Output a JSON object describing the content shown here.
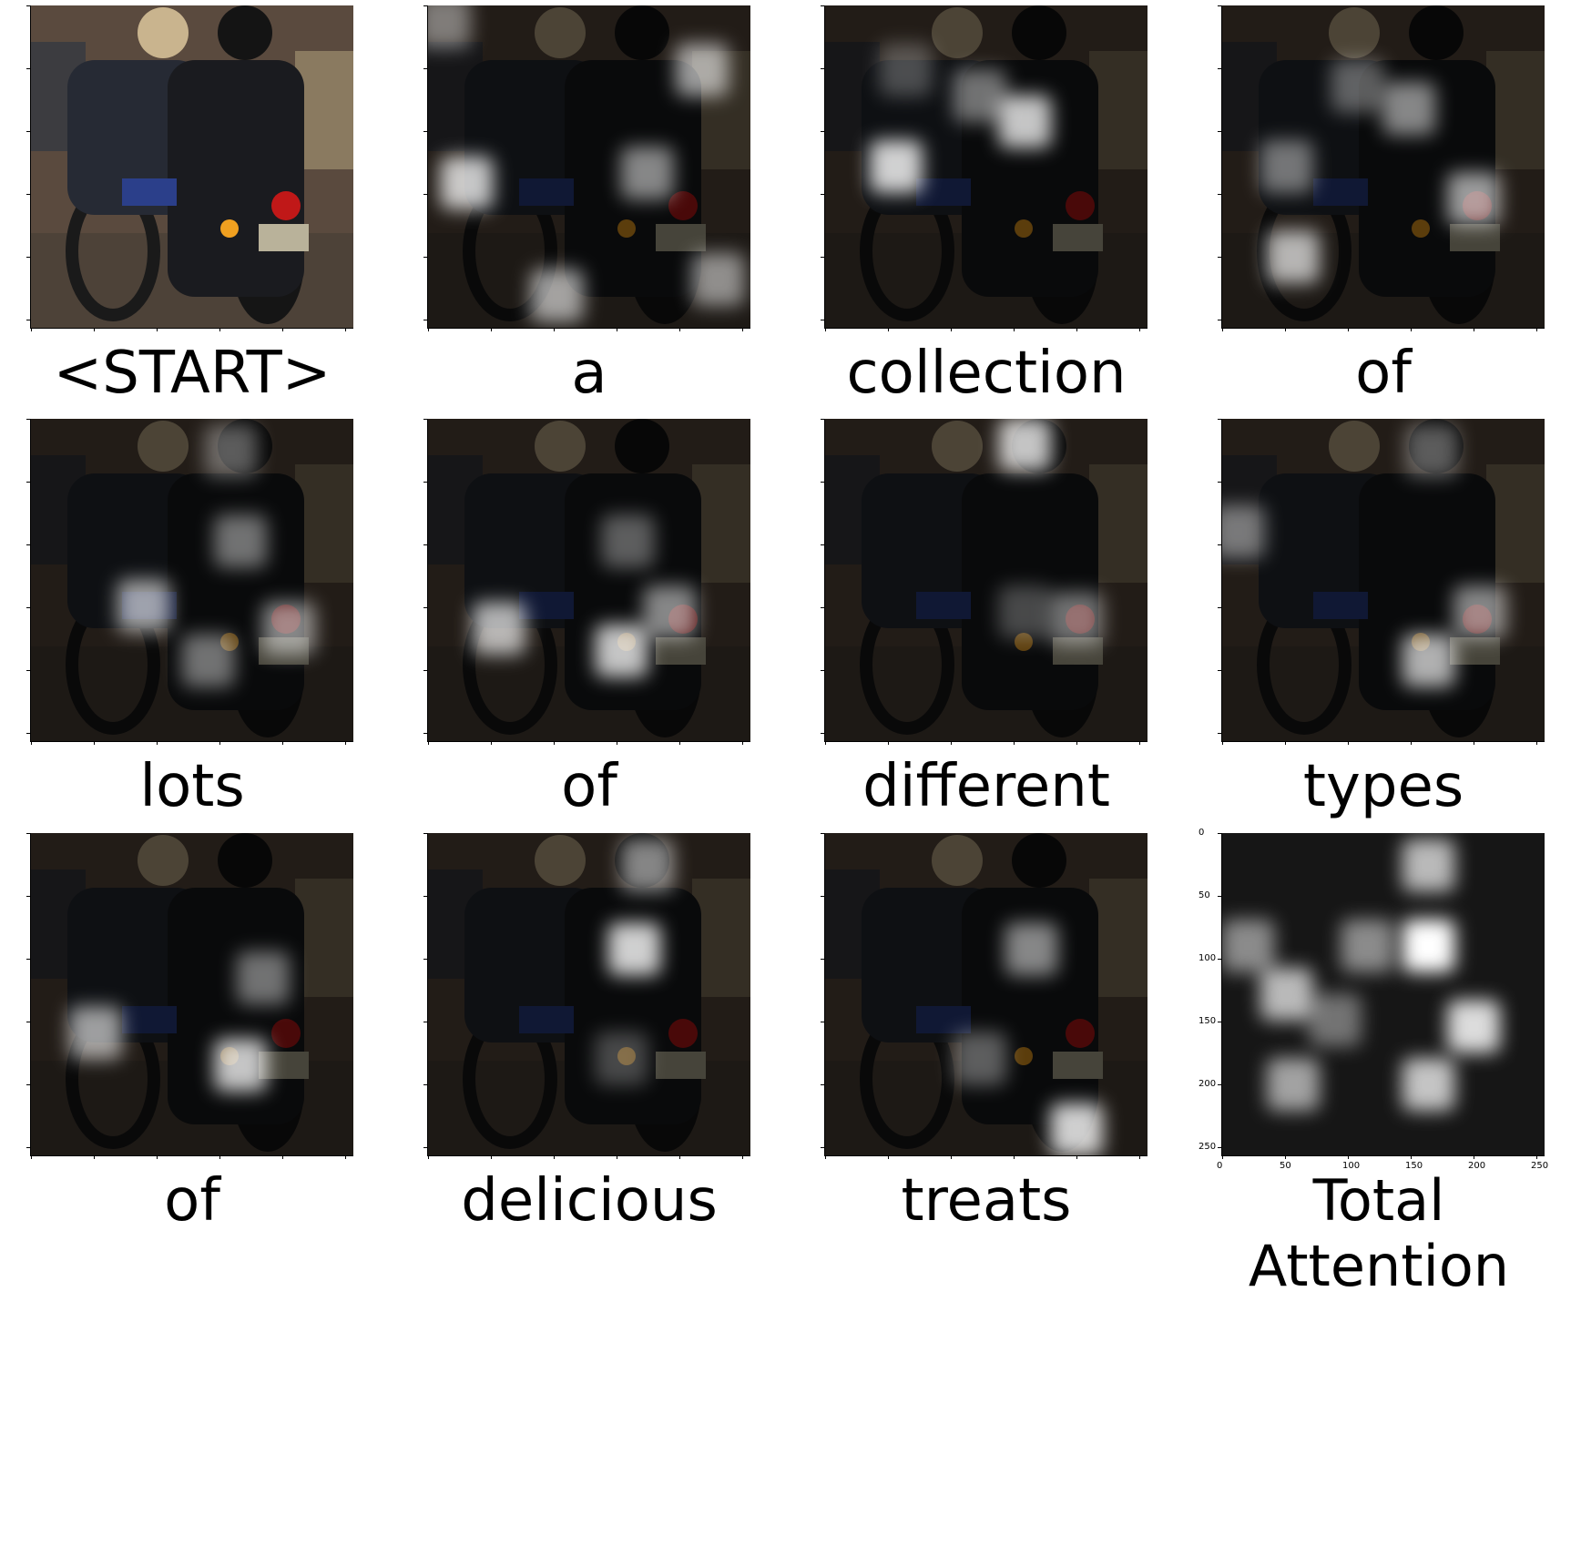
{
  "figure": {
    "panels": [
      {
        "caption": "<START>",
        "mode": "photo"
      },
      {
        "caption": "a",
        "mode": "attention",
        "spots": [
          [
            0.12,
            0.55,
            0.9
          ],
          [
            0.85,
            0.2,
            0.7
          ],
          [
            0.68,
            0.52,
            0.6
          ],
          [
            0.4,
            0.9,
            0.7
          ],
          [
            0.05,
            0.05,
            0.5
          ],
          [
            0.9,
            0.85,
            0.6
          ]
        ]
      },
      {
        "caption": "collection",
        "mode": "attention",
        "spots": [
          [
            0.22,
            0.5,
            0.95
          ],
          [
            0.62,
            0.36,
            0.9
          ],
          [
            0.48,
            0.28,
            0.5
          ],
          [
            0.25,
            0.2,
            0.3
          ]
        ]
      },
      {
        "caption": "of",
        "mode": "attention",
        "spots": [
          [
            0.58,
            0.32,
            0.6
          ],
          [
            0.78,
            0.6,
            0.7
          ],
          [
            0.22,
            0.78,
            0.8
          ],
          [
            0.2,
            0.5,
            0.5
          ],
          [
            0.42,
            0.25,
            0.4
          ]
        ]
      },
      {
        "caption": "lots",
        "mode": "attention",
        "spots": [
          [
            0.35,
            0.58,
            0.7
          ],
          [
            0.65,
            0.38,
            0.5
          ],
          [
            0.8,
            0.65,
            0.6
          ],
          [
            0.55,
            0.75,
            0.5
          ],
          [
            0.62,
            0.1,
            0.4
          ]
        ]
      },
      {
        "caption": "of",
        "mode": "attention",
        "spots": [
          [
            0.22,
            0.65,
            0.8
          ],
          [
            0.6,
            0.72,
            0.9
          ],
          [
            0.75,
            0.6,
            0.6
          ],
          [
            0.62,
            0.38,
            0.4
          ]
        ]
      },
      {
        "caption": "different",
        "mode": "attention",
        "spots": [
          [
            0.62,
            0.08,
            0.9
          ],
          [
            0.78,
            0.62,
            0.5
          ],
          [
            0.62,
            0.6,
            0.3
          ]
        ]
      },
      {
        "caption": "types",
        "mode": "attention",
        "spots": [
          [
            0.64,
            0.75,
            0.8
          ],
          [
            0.8,
            0.6,
            0.6
          ],
          [
            0.65,
            0.1,
            0.4
          ],
          [
            0.05,
            0.35,
            0.5
          ]
        ]
      },
      {
        "caption": "of",
        "mode": "attention",
        "spots": [
          [
            0.2,
            0.62,
            0.7
          ],
          [
            0.65,
            0.72,
            0.9
          ],
          [
            0.72,
            0.45,
            0.5
          ]
        ]
      },
      {
        "caption": "delicious",
        "mode": "attention",
        "spots": [
          [
            0.64,
            0.36,
            0.95
          ],
          [
            0.68,
            0.1,
            0.6
          ],
          [
            0.6,
            0.7,
            0.3
          ]
        ]
      },
      {
        "caption": "treats",
        "mode": "attention",
        "spots": [
          [
            0.78,
            0.92,
            0.95
          ],
          [
            0.64,
            0.36,
            0.6
          ],
          [
            0.48,
            0.7,
            0.4
          ]
        ]
      },
      {
        "caption": "Total Attention",
        "mode": "total",
        "ticks_x": [
          "0",
          "50",
          "100",
          "150",
          "200",
          "250"
        ],
        "ticks_y": [
          "0",
          "50",
          "100",
          "150",
          "200",
          "250"
        ],
        "spots": [
          [
            0.64,
            0.35,
            1.0
          ],
          [
            0.64,
            0.1,
            0.7
          ],
          [
            0.78,
            0.6,
            0.85
          ],
          [
            0.64,
            0.78,
            0.75
          ],
          [
            0.2,
            0.5,
            0.7
          ],
          [
            0.22,
            0.78,
            0.6
          ],
          [
            0.45,
            0.35,
            0.5
          ],
          [
            0.08,
            0.35,
            0.5
          ],
          [
            0.35,
            0.58,
            0.4
          ]
        ]
      }
    ]
  }
}
